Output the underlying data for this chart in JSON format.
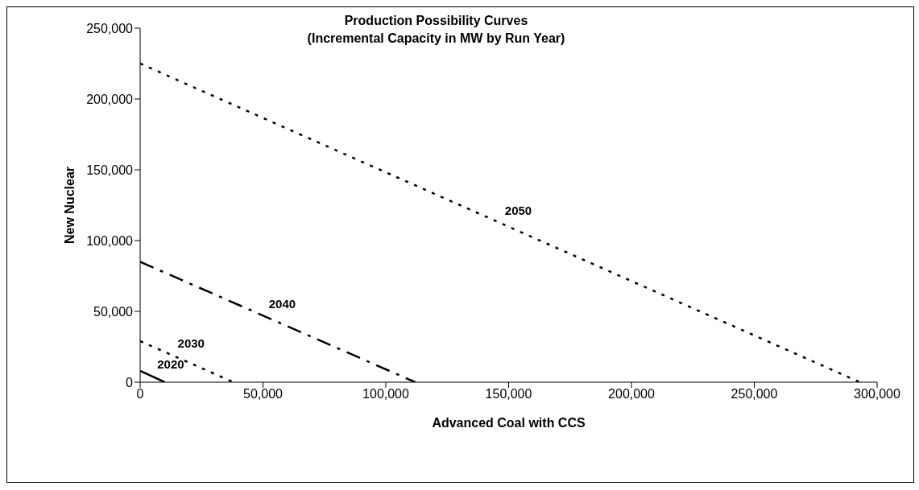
{
  "chart_data": {
    "type": "line",
    "title": "Production Possibility Curves\n(Incremental Capacity in MW by Run Year)",
    "xlabel": "Advanced Coal with CCS",
    "ylabel": "New Nuclear",
    "series": [
      {
        "name": "2020",
        "color": "#000000",
        "x": [
          0,
          10000
        ],
        "values": [
          8000,
          0
        ],
        "line_style": "solid"
      },
      {
        "name": "2030",
        "color": "#000000",
        "x": [
          0,
          38000
        ],
        "values": [
          29000,
          0
        ],
        "line_style": "dotted"
      },
      {
        "name": "2040",
        "color": "#000000",
        "x": [
          0,
          112000
        ],
        "values": [
          85000,
          0
        ],
        "line_style": "dashed"
      },
      {
        "name": "2050",
        "color": "#000000",
        "x": [
          0,
          293000
        ],
        "values": [
          225000,
          0
        ],
        "line_style": "dotted"
      }
    ],
    "xlim": [
      0,
      300000
    ],
    "xticks": [
      0,
      {
        "value": 50000,
        "label": "50,000"
      },
      {
        "value": 100000,
        "label": "100,000"
      },
      {
        "value": 150000,
        "label": "150,000"
      },
      {
        "value": 200000,
        "label": "200,000"
      },
      {
        "value": 250000,
        "label": "250,000"
      },
      {
        "value": 300000,
        "label": "300,000"
      }
    ],
    "ylim": [
      0,
      250000
    ],
    "yticks": [
      0,
      {
        "value": 50000,
        "label": "50,000"
      },
      {
        "value": 100000,
        "label": "100,000"
      },
      {
        "value": 150000,
        "label": "150,000"
      },
      {
        "value": 200000,
        "label": "200,000"
      },
      {
        "value": 250000,
        "label": "250,000"
      }
    ],
    "grid": false,
    "legend": false,
    "marker": "none"
  }
}
